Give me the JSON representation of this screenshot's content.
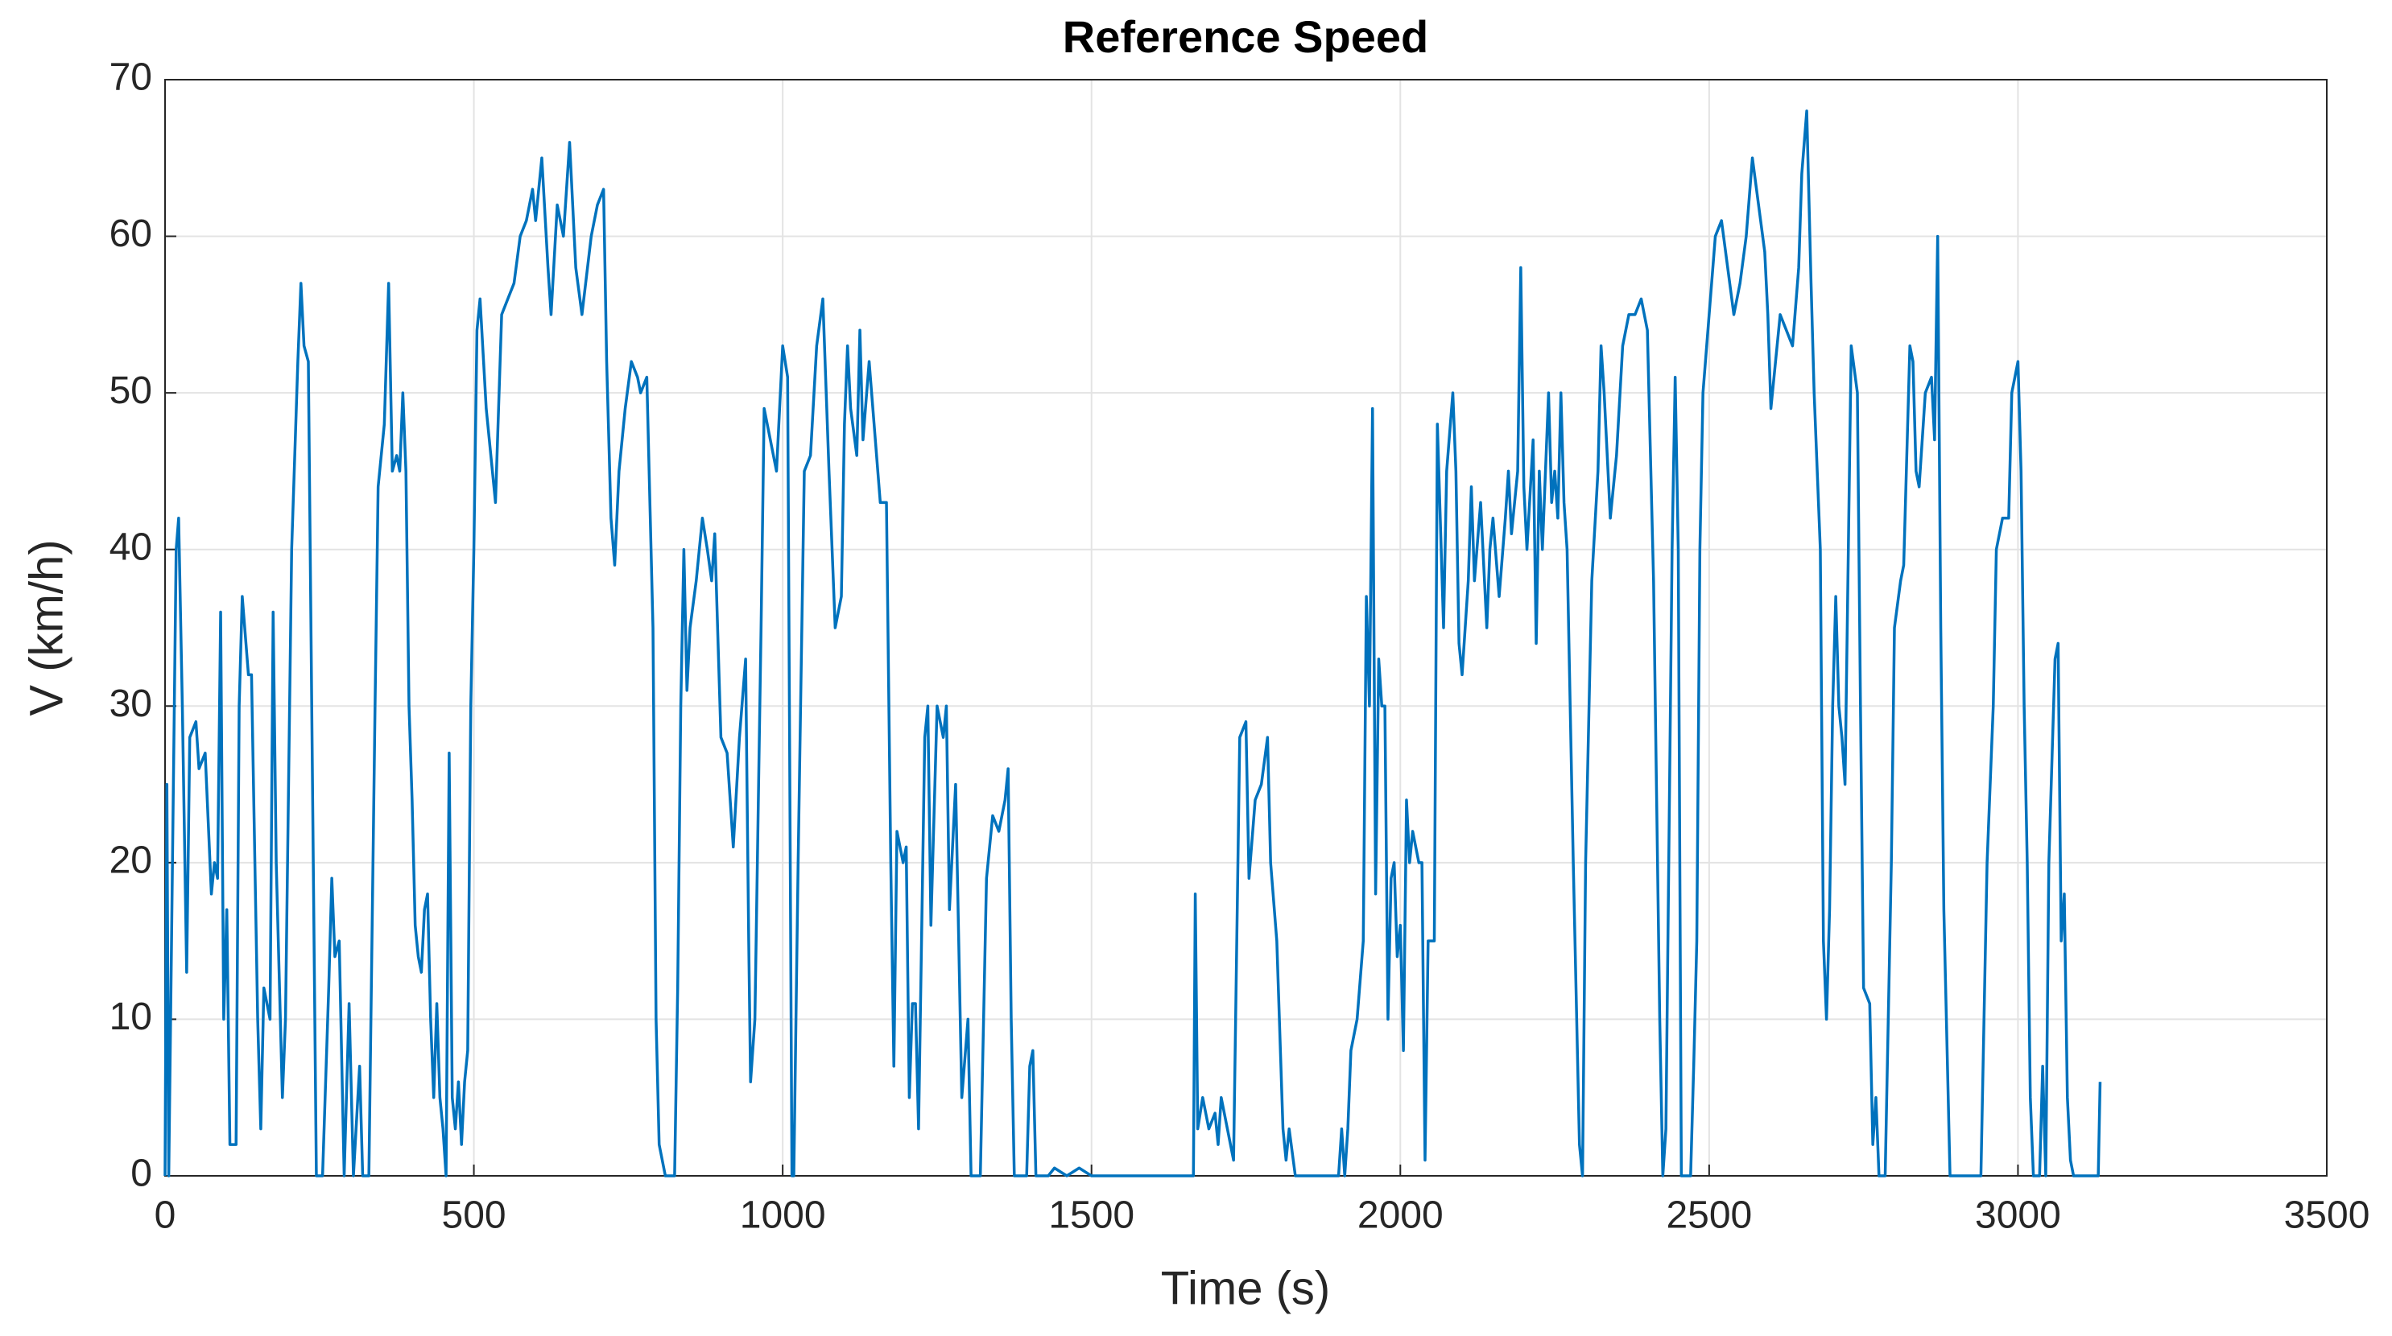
{
  "chart_data": {
    "type": "line",
    "title": "Reference Speed",
    "x_label": "Time (s)",
    "y_label": "V (km/h)",
    "color": "#0072bd",
    "grid": true,
    "xlim": [
      0,
      3500
    ],
    "ylim": [
      0,
      70
    ],
    "xticks": [
      0,
      500,
      1000,
      1500,
      2000,
      2500,
      3000,
      3500
    ],
    "yticks": [
      0,
      10,
      20,
      30,
      40,
      50,
      60,
      70
    ],
    "x": [
      0,
      3,
      6,
      12,
      18,
      22,
      28,
      35,
      40,
      50,
      55,
      65,
      75,
      80,
      85,
      90,
      95,
      100,
      105,
      115,
      120,
      125,
      135,
      140,
      150,
      155,
      160,
      170,
      175,
      180,
      190,
      195,
      205,
      215,
      220,
      225,
      232,
      240,
      245,
      255,
      265,
      270,
      275,
      282,
      290,
      298,
      305,
      315,
      320,
      330,
      335,
      340,
      345,
      355,
      362,
      368,
      375,
      380,
      385,
      390,
      395,
      400,
      405,
      410,
      415,
      420,
      425,
      430,
      435,
      440,
      445,
      450,
      455,
      460,
      465,
      470,
      475,
      480,
      485,
      490,
      495,
      500,
      505,
      510,
      520,
      530,
      535,
      545,
      555,
      565,
      575,
      585,
      595,
      600,
      610,
      620,
      625,
      635,
      645,
      655,
      665,
      675,
      690,
      700,
      710,
      715,
      722,
      728,
      735,
      745,
      755,
      765,
      770,
      780,
      790,
      795,
      800,
      810,
      825,
      830,
      835,
      840,
      845,
      850,
      860,
      870,
      878,
      885,
      890,
      900,
      910,
      920,
      930,
      940,
      945,
      948,
      955,
      965,
      970,
      980,
      990,
      1000,
      1008,
      1015,
      1018,
      1025,
      1035,
      1045,
      1055,
      1065,
      1075,
      1085,
      1095,
      1100,
      1105,
      1110,
      1120,
      1125,
      1130,
      1140,
      1150,
      1158,
      1168,
      1175,
      1180,
      1185,
      1195,
      1200,
      1205,
      1210,
      1215,
      1220,
      1230,
      1235,
      1240,
      1250,
      1260,
      1265,
      1270,
      1280,
      1285,
      1290,
      1300,
      1305,
      1320,
      1330,
      1340,
      1350,
      1360,
      1365,
      1370,
      1375,
      1395,
      1400,
      1405,
      1410,
      1430,
      1440,
      1460,
      1480,
      1500,
      1665,
      1668,
      1672,
      1680,
      1690,
      1700,
      1705,
      1710,
      1720,
      1730,
      1740,
      1750,
      1755,
      1765,
      1775,
      1785,
      1790,
      1800,
      1810,
      1815,
      1820,
      1830,
      1900,
      1905,
      1910,
      1915,
      1920,
      1930,
      1940,
      1945,
      1950,
      1955,
      1960,
      1965,
      1970,
      1975,
      1980,
      1985,
      1990,
      1995,
      2000,
      2005,
      2010,
      2015,
      2020,
      2030,
      2035,
      2040,
      2045,
      2055,
      2060,
      2070,
      2075,
      2085,
      2090,
      2095,
      2100,
      2110,
      2115,
      2120,
      2130,
      2140,
      2145,
      2150,
      2160,
      2170,
      2175,
      2180,
      2190,
      2195,
      2200,
      2205,
      2215,
      2220,
      2225,
      2230,
      2240,
      2245,
      2250,
      2255,
      2260,
      2265,
      2270,
      2280,
      2290,
      2295,
      2300,
      2310,
      2320,
      2325,
      2330,
      2340,
      2350,
      2360,
      2370,
      2380,
      2390,
      2400,
      2410,
      2420,
      2425,
      2430,
      2440,
      2445,
      2450,
      2455,
      2470,
      2475,
      2480,
      2485,
      2490,
      2500,
      2510,
      2520,
      2530,
      2540,
      2550,
      2560,
      2570,
      2580,
      2590,
      2595,
      2600,
      2610,
      2615,
      2625,
      2635,
      2645,
      2650,
      2658,
      2665,
      2670,
      2680,
      2685,
      2690,
      2695,
      2700,
      2705,
      2710,
      2715,
      2720,
      2730,
      2740,
      2745,
      2750,
      2760,
      2765,
      2770,
      2775,
      2785,
      2795,
      2800,
      2810,
      2815,
      2825,
      2830,
      2835,
      2840,
      2850,
      2860,
      2865,
      2870,
      2875,
      2880,
      2890,
      2940,
      2950,
      2960,
      2965,
      2975,
      2985,
      2990,
      3000,
      3005,
      3010,
      3015,
      3020,
      3025,
      3035,
      3040,
      3045,
      3050,
      3060,
      3065,
      3070,
      3075,
      3080,
      3085,
      3090,
      3130,
      3133
    ],
    "values": [
      0,
      25,
      0,
      20,
      40,
      42,
      30,
      13,
      28,
      29,
      26,
      27,
      18,
      20,
      19,
      36,
      10,
      17,
      2,
      2,
      30,
      37,
      32,
      32,
      10,
      3,
      12,
      10,
      36,
      20,
      5,
      10,
      40,
      52,
      57,
      53,
      52,
      20,
      0,
      0,
      12,
      19,
      14,
      15,
      0,
      11,
      0,
      7,
      0,
      0,
      15,
      30,
      44,
      48,
      57,
      45,
      46,
      45,
      50,
      45,
      30,
      24,
      16,
      14,
      13,
      17,
      18,
      10,
      5,
      11,
      5,
      3,
      0,
      27,
      5,
      3,
      6,
      2,
      6,
      8,
      30,
      40,
      54,
      56,
      49,
      45,
      43,
      55,
      56,
      57,
      60,
      61,
      63,
      61,
      65,
      58,
      55,
      62,
      60,
      66,
      58,
      55,
      60,
      62,
      63,
      52,
      42,
      39,
      45,
      49,
      52,
      51,
      50,
      51,
      35,
      10,
      2,
      0,
      0,
      12,
      30,
      40,
      31,
      35,
      38,
      42,
      40,
      38,
      41,
      28,
      27,
      21,
      28,
      33,
      15,
      6,
      10,
      35,
      49,
      47,
      45,
      53,
      51,
      0,
      0,
      20,
      45,
      46,
      53,
      56,
      45,
      35,
      37,
      48,
      53,
      49,
      46,
      54,
      47,
      52,
      47,
      43,
      43,
      20,
      7,
      22,
      20,
      21,
      5,
      11,
      11,
      3,
      28,
      30,
      16,
      30,
      28,
      30,
      17,
      25,
      15,
      5,
      10,
      0,
      0,
      19,
      23,
      22,
      24,
      26,
      10,
      0,
      0,
      7,
      8,
      0,
      0,
      0.5,
      0,
      0.5,
      0,
      0,
      18,
      3,
      5,
      3,
      4,
      2,
      5,
      3,
      1,
      28,
      29,
      19,
      24,
      25,
      28,
      20,
      15,
      3,
      1,
      3,
      0,
      0,
      3,
      0,
      3,
      8,
      10,
      15,
      37,
      30,
      49,
      18,
      33,
      30,
      30,
      10,
      19,
      20,
      14,
      16,
      8,
      24,
      20,
      22,
      20,
      20,
      1,
      15,
      15,
      48,
      35,
      45,
      50,
      45,
      34,
      32,
      38,
      44,
      38,
      43,
      35,
      40,
      42,
      37,
      42,
      45,
      41,
      45,
      58,
      44,
      40,
      47,
      34,
      45,
      40,
      50,
      43,
      45,
      42,
      50,
      43,
      40,
      20,
      2,
      0,
      20,
      38,
      45,
      53,
      50,
      42,
      46,
      53,
      55,
      55,
      56,
      54,
      38,
      10,
      0,
      3,
      40,
      51,
      40,
      0,
      0,
      7,
      15,
      40,
      50,
      55,
      60,
      61,
      58,
      55,
      57,
      60,
      65,
      62,
      59,
      55,
      49,
      53,
      55,
      54,
      53,
      58,
      64,
      68,
      57,
      50,
      40,
      15,
      10,
      17,
      30,
      37,
      30,
      28,
      25,
      53,
      50,
      30,
      12,
      11,
      2,
      5,
      0,
      0,
      20,
      35,
      38,
      39,
      53,
      52,
      45,
      44,
      50,
      51,
      47,
      60,
      35,
      17,
      0,
      0,
      20,
      30,
      40,
      42,
      42,
      50,
      52,
      45,
      30,
      20,
      5,
      0,
      0,
      7,
      0,
      20,
      33,
      34,
      15,
      18,
      5,
      1,
      0,
      0,
      6
    ]
  }
}
